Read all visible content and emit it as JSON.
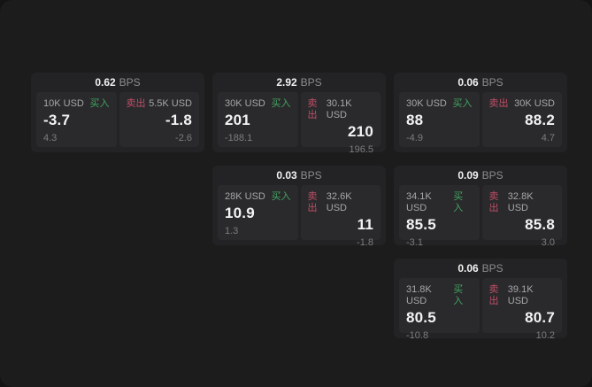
{
  "colors": {
    "backdrop": "#141415",
    "window": "#1c1c1d",
    "card": "#232325",
    "panel": "#2a2a2c",
    "buy": "#41a35f",
    "sell": "#c04e66",
    "label": "#a6a6a8",
    "dim": "#7d7d80",
    "unitgray": "#8d8d8f"
  },
  "labels": {
    "bps_unit": "BPS",
    "buy": "买入",
    "sell": "卖出"
  },
  "cards": [
    {
      "bps": "0.62",
      "buy": {
        "size": "10K USD",
        "price": "-3.7",
        "delta": "4.3"
      },
      "sell": {
        "size": "5.5K USD",
        "price": "-1.8",
        "delta": "-2.6"
      }
    },
    {
      "bps": "2.92",
      "buy": {
        "size": "30K USD",
        "price": "201",
        "delta": "-188.1"
      },
      "sell": {
        "size": "30.1K USD",
        "price": "210",
        "delta": "196.5"
      }
    },
    {
      "bps": "0.06",
      "buy": {
        "size": "30K USD",
        "price": "88",
        "delta": "-4.9"
      },
      "sell": {
        "size": "30K USD",
        "price": "88.2",
        "delta": "4.7"
      }
    },
    {
      "bps": "0.03",
      "buy": {
        "size": "28K USD",
        "price": "10.9",
        "delta": "1.3"
      },
      "sell": {
        "size": "32.6K USD",
        "price": "11",
        "delta": "-1.8"
      }
    },
    {
      "bps": "0.09",
      "buy": {
        "size": "34.1K USD",
        "price": "85.5",
        "delta": "-3.1"
      },
      "sell": {
        "size": "32.8K USD",
        "price": "85.8",
        "delta": "3.0"
      }
    },
    {
      "bps": "0.06",
      "buy": {
        "size": "31.8K USD",
        "price": "80.5",
        "delta": "-10.8"
      },
      "sell": {
        "size": "39.1K USD",
        "price": "80.7",
        "delta": "10.2"
      }
    }
  ]
}
